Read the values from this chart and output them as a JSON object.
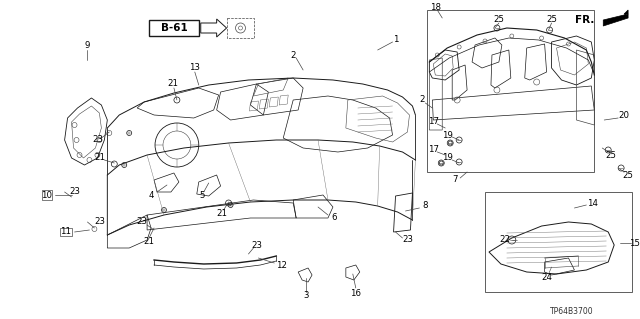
{
  "background_color": "#ffffff",
  "diagram_code": "TP64B3700",
  "fr_label": "FR.",
  "b61_label": "B-61",
  "fig_width": 6.4,
  "fig_height": 3.19,
  "dpi": 100,
  "lc": "#1a1a1a",
  "lc2": "#444444",
  "lc3": "#666666"
}
